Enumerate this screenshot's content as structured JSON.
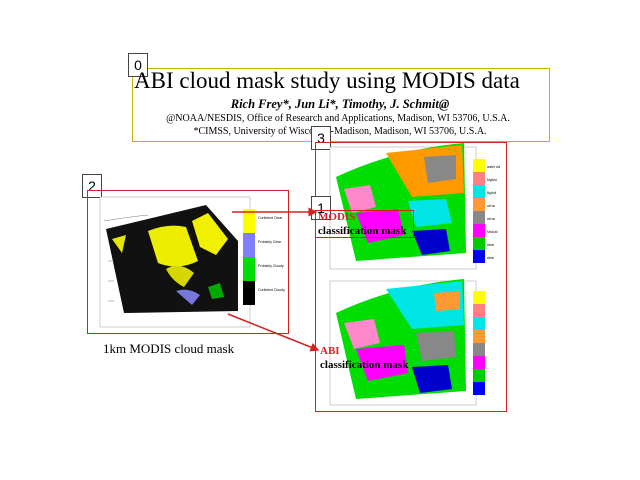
{
  "labels": {
    "box0": "0",
    "box1": "1",
    "box2": "2",
    "box3": "3"
  },
  "header": {
    "title": "ABI cloud mask study using MODIS data",
    "authors": "Rich Frey*, Jun Li*, Timothy, J. Schmit@",
    "affiliation1": "@NOAA/NESDIS, Office of Research and Applications, Madison, WI 53706, U.S.A.",
    "affiliation2": "*CIMSS, University of Wisconsin-Madison, Madison, WI 53706, U.S.A."
  },
  "left_figure": {
    "caption": "1km MODIS cloud mask",
    "legend": [
      "Confident Clear",
      "Probably Clear",
      "Probably Cloudy",
      "Confident Cloudy"
    ],
    "legend_colors": [
      "#ffff00",
      "#8080ff",
      "#00dd00",
      "#000000"
    ]
  },
  "right_figure": {
    "modis_label_1": "MODIS",
    "modis_label_2": "classification mask",
    "abi_label_1": "ABI",
    "abi_label_2": "classification mask",
    "legend": [
      "water cld",
      "Mgfcld",
      "Bgfcld",
      "cirrus",
      "cirrus",
      "Mxdcld",
      "clear",
      "clear"
    ],
    "legend_colors": [
      "#ffff00",
      "#ff8080",
      "#00e5e5",
      "#ff9933",
      "#888888",
      "#ff00ff",
      "#00cc00",
      "#0000ff"
    ]
  },
  "colors": {
    "accent_red": "#d42020",
    "title_box": "#c8b400"
  }
}
